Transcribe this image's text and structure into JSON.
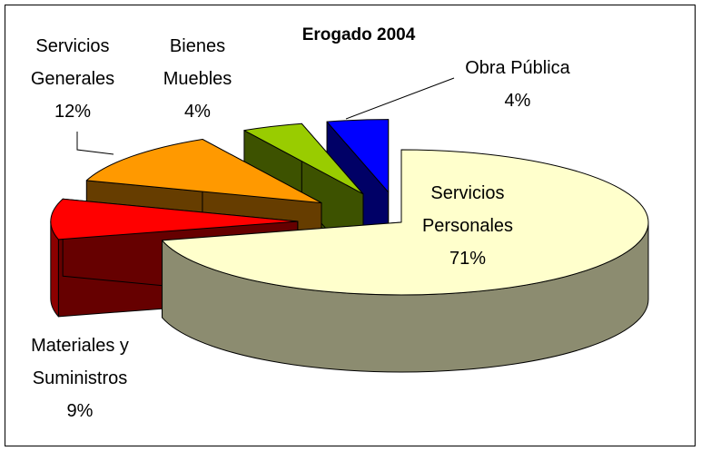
{
  "chart_data": {
    "type": "pie",
    "title": "Erogado 2004",
    "categories": [
      "Servicios Personales",
      "Materiales y Suministros",
      "Servicios Generales",
      "Bienes Muebles",
      "Obra Pública"
    ],
    "values": [
      71,
      9,
      12,
      4,
      4
    ],
    "value_labels": [
      "71%",
      "9%",
      "12%",
      "4%",
      "4%"
    ],
    "colors": [
      "#ffffcc",
      "#ff0000",
      "#ff9900",
      "#99cc00",
      "#0000ff"
    ]
  }
}
